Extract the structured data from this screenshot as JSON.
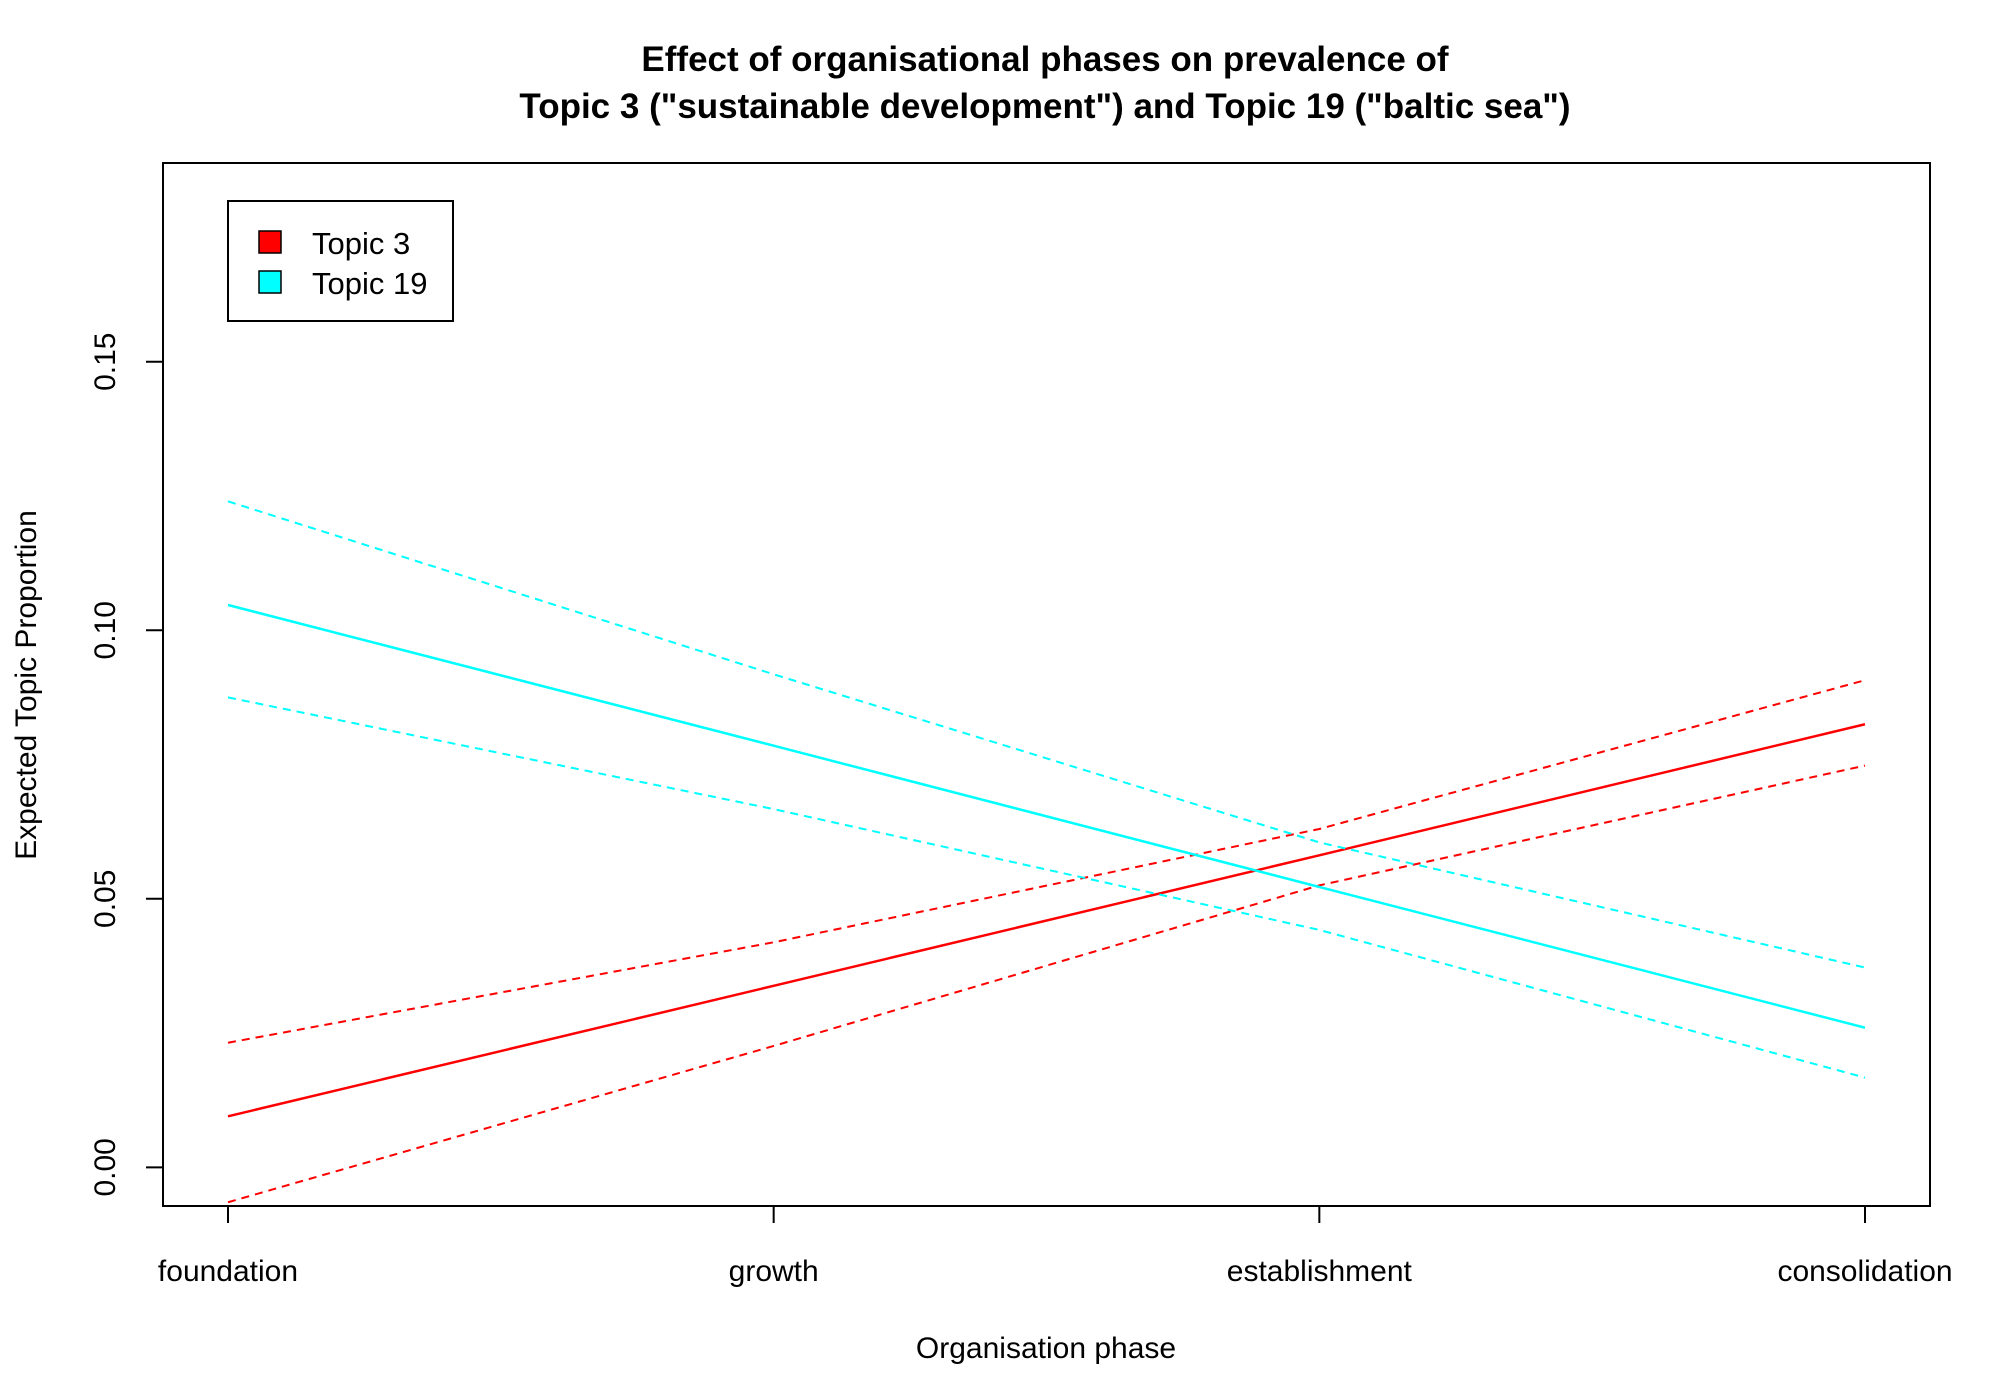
{
  "chart_data": {
    "type": "line",
    "title_lines": [
      "Effect of organisational phases on prevalence of",
      "Topic 3 (\"sustainable development\") and Topic 19 (\"baltic sea\")"
    ],
    "xlabel": "Organisation phase",
    "ylabel": "Expected Topic Proportion",
    "categories": [
      "foundation",
      "growth",
      "establishment",
      "consolidation"
    ],
    "yticks": [
      "0.00",
      "0.05",
      "0.10",
      "0.15"
    ],
    "ylim": [
      -0.0072,
      0.187
    ],
    "grid": false,
    "legend_position": "top-left",
    "series": [
      {
        "name": "Topic 3",
        "color": "#ff0000",
        "estimate": [
          0.0095,
          0.0338,
          0.0581,
          0.0825
        ],
        "ci_upper": [
          0.0232,
          0.0419,
          0.063,
          0.0907
        ],
        "ci_lower": [
          -0.0065,
          0.0226,
          0.0525,
          0.0748
        ]
      },
      {
        "name": "Topic 19",
        "color": "#00ffff",
        "estimate": [
          0.1047,
          0.0785,
          0.0522,
          0.026
        ],
        "ci_upper": [
          0.124,
          0.0918,
          0.0605,
          0.0372
        ],
        "ci_lower": [
          0.0875,
          0.0667,
          0.0442,
          0.0167
        ]
      }
    ]
  }
}
